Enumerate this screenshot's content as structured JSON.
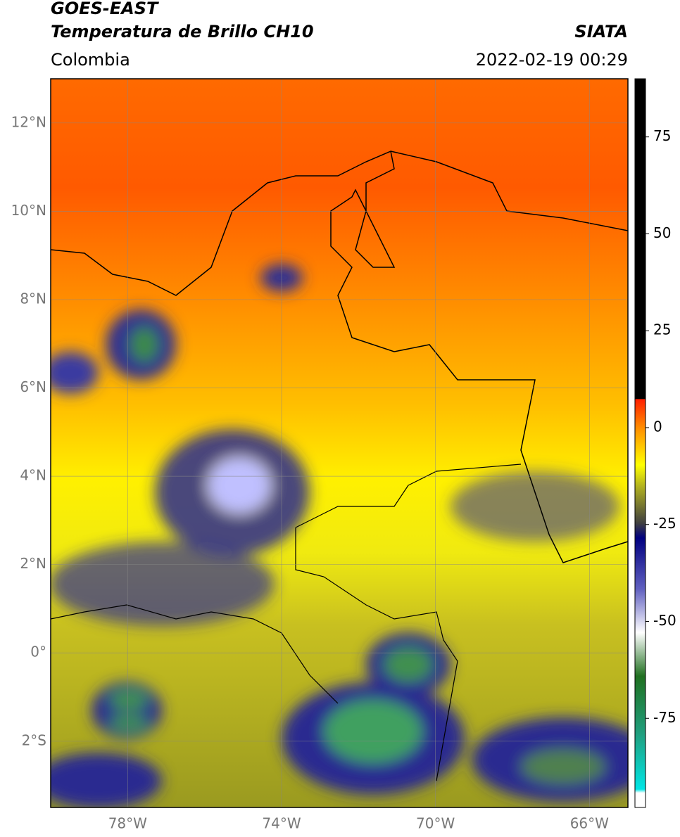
{
  "header": {
    "title": "GOES-EAST",
    "subtitle": "Temperatura de Brillo CH10",
    "source": "SIATA",
    "region": "Colombia",
    "datetime": "2022-02-19 00:29"
  },
  "map": {
    "lat_range": [
      -3.5,
      13
    ],
    "lon_range": [
      -80,
      -65
    ],
    "lat_ticks": [
      {
        "value": 12,
        "label": "12°N"
      },
      {
        "value": 10,
        "label": "10°N"
      },
      {
        "value": 8,
        "label": "8°N"
      },
      {
        "value": 6,
        "label": "6°N"
      },
      {
        "value": 4,
        "label": "4°N"
      },
      {
        "value": 2,
        "label": "2°N"
      },
      {
        "value": 0,
        "label": "0°"
      },
      {
        "value": -2,
        "label": "2°S"
      }
    ],
    "lon_ticks": [
      {
        "value": -78,
        "label": "78°W"
      },
      {
        "value": -74,
        "label": "74°W"
      },
      {
        "value": -70,
        "label": "70°W"
      },
      {
        "value": -66,
        "label": "66°W"
      }
    ],
    "grid": true
  },
  "colorbar": {
    "range": [
      -98,
      90
    ],
    "ticks": [
      75,
      50,
      25,
      0,
      -25,
      -50,
      -75
    ]
  }
}
